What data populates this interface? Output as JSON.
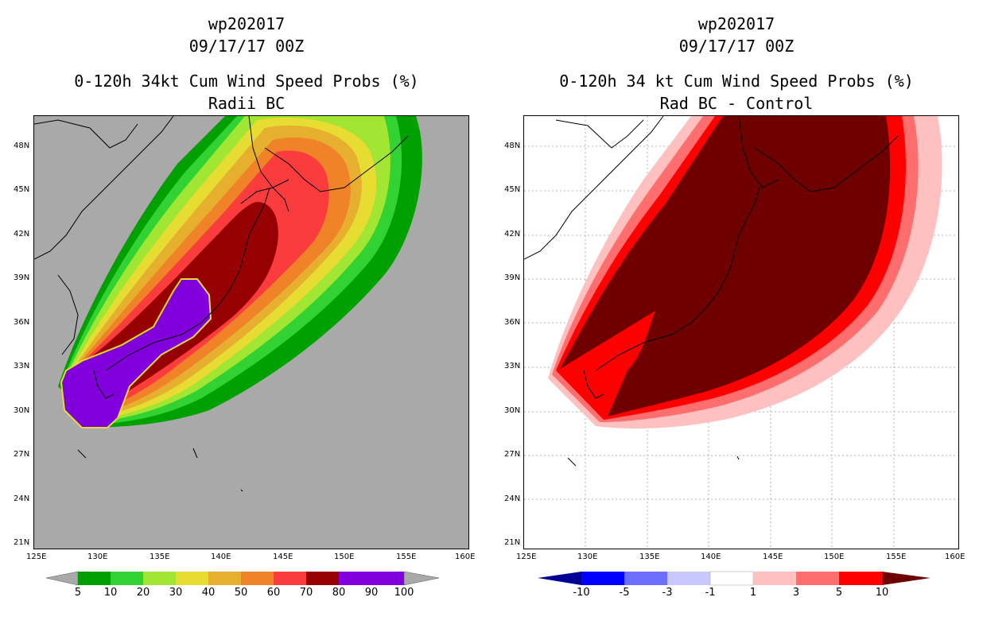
{
  "left_panel": {
    "line1": "wp202017",
    "line2": "09/17/17 00Z",
    "line3": "0-120h 34kt Cum Wind Speed Probs (%)",
    "line4": "Radii BC",
    "colorbar": {
      "labels": [
        "5",
        "10",
        "20",
        "30",
        "40",
        "50",
        "60",
        "70",
        "80",
        "90",
        "100"
      ],
      "colors": [
        "#A9A9A9",
        "#00A000",
        "#32D232",
        "#A0E632",
        "#E6DC32",
        "#E6AF2D",
        "#F08228",
        "#FA3C3C",
        "#960000",
        "#8200DC",
        "#A9A9A9"
      ]
    }
  },
  "right_panel": {
    "line1": "wp202017",
    "line2": "09/17/17 00Z",
    "line3": "0-120h 34 kt Cum Wind Speed Probs (%)",
    "line4": "Rad BC - Control",
    "colorbar": {
      "labels": [
        "-10",
        "-5",
        "-3",
        "-1",
        "1",
        "3",
        "5",
        "10"
      ],
      "colors": [
        "#000096",
        "#0000FF",
        "#6E6EFF",
        "#C8C8FF",
        "#FFFFFF",
        "#FFC0C0",
        "#FF6E6E",
        "#FF0000",
        "#6E0000"
      ]
    }
  },
  "axes": {
    "lat_labels": [
      "48N",
      "45N",
      "42N",
      "39N",
      "36N",
      "33N",
      "30N",
      "27N",
      "24N",
      "21N"
    ],
    "lon_labels": [
      "125E",
      "130E",
      "135E",
      "140E",
      "145E",
      "150E",
      "155E",
      "160E"
    ]
  }
}
